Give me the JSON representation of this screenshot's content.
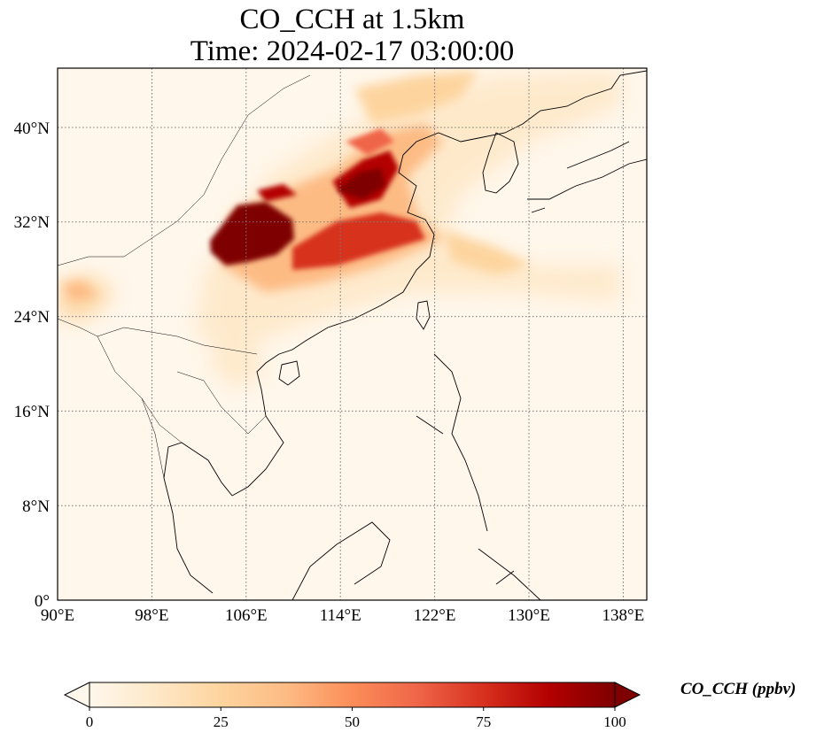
{
  "title": {
    "line1": "CO_CCH at 1.5km",
    "line2": "Time: 2024-02-17 03:00:00"
  },
  "map": {
    "lon_range": [
      90,
      140
    ],
    "lat_range": [
      0,
      45
    ],
    "lon_ticks": [
      "90°E",
      "98°E",
      "106°E",
      "114°E",
      "122°E",
      "130°E",
      "138°E"
    ],
    "lat_ticks": [
      "0°",
      "8°N",
      "16°N",
      "24°N",
      "32°N",
      "40°N"
    ],
    "gridlines": true
  },
  "colorbar": {
    "label": "CO_CCH (ppbv)",
    "range": [
      0,
      100
    ],
    "ticks": [
      "0",
      "25",
      "50",
      "75",
      "100"
    ],
    "colormap": "OrRd",
    "colors": [
      "#fff7ec",
      "#fee8c8",
      "#fdd49e",
      "#fdbb84",
      "#fc8d59",
      "#ef6548",
      "#d7301f",
      "#b30000",
      "#7f0000"
    ]
  }
}
